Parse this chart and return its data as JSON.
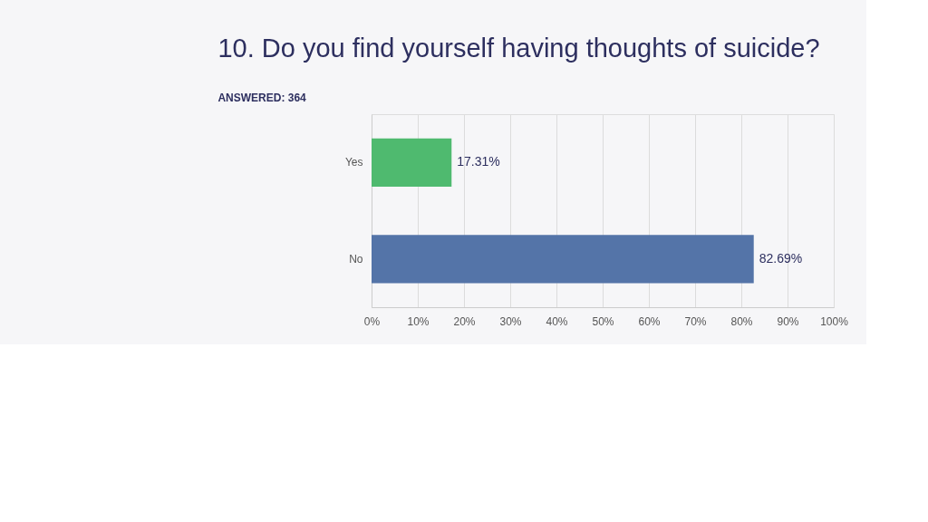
{
  "chart_data": {
    "type": "bar",
    "orientation": "horizontal",
    "title": "10. Do you find yourself having thoughts of suicide?",
    "subtitle": "ANSWERED: 364",
    "categories": [
      "Yes",
      "No"
    ],
    "values": [
      17.31,
      82.69
    ],
    "colors": [
      "#4fba6f",
      "#5474a8"
    ],
    "value_labels": [
      "17.31%",
      "82.69%"
    ],
    "xlim": [
      0,
      100
    ],
    "xticks": [
      {
        "value": 0,
        "label": "0%"
      },
      {
        "value": 10,
        "label": "10%"
      },
      {
        "value": 20,
        "label": "20%"
      },
      {
        "value": 30,
        "label": "30%"
      },
      {
        "value": 40,
        "label": "40%"
      },
      {
        "value": 50,
        "label": "50%"
      },
      {
        "value": 60,
        "label": "60%"
      },
      {
        "value": 70,
        "label": "70%"
      },
      {
        "value": 80,
        "label": "80%"
      },
      {
        "value": 90,
        "label": "90%"
      },
      {
        "value": 100,
        "label": "100%"
      }
    ],
    "grid": "x"
  }
}
